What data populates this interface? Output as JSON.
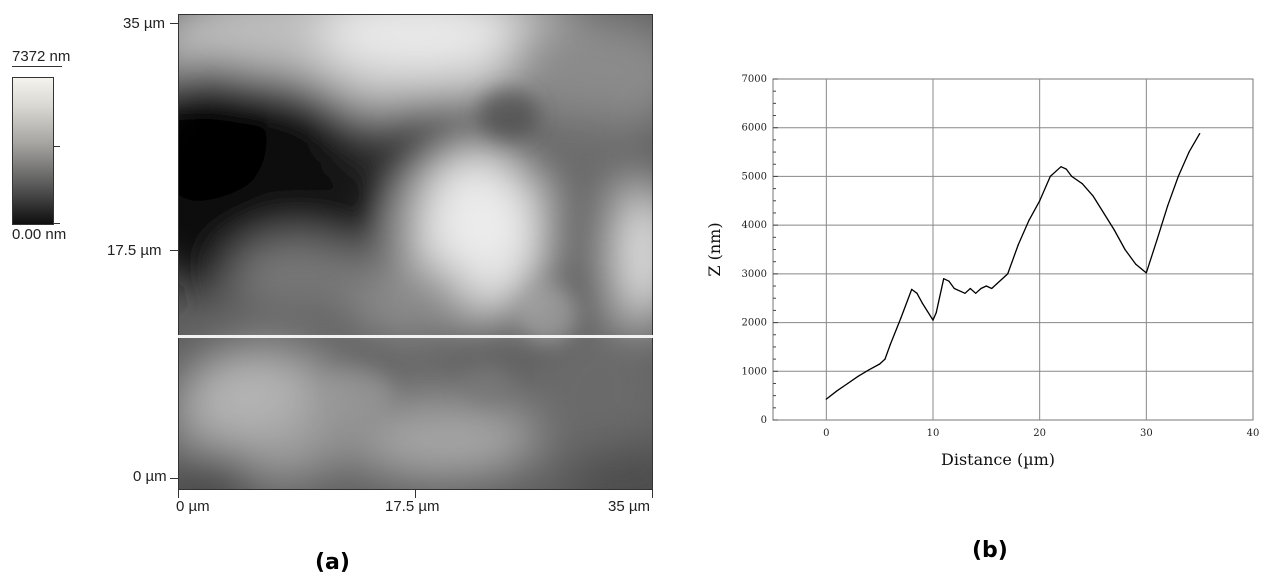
{
  "panel_a": {
    "label": "(a)",
    "colorbar": {
      "max_label": "7372 nm",
      "min_label": "0.00 nm"
    },
    "y_ticks": [
      "35 µm",
      "17.5 µm",
      "0 µm"
    ],
    "x_ticks": [
      "0 µm",
      "17.5 µm",
      "35 µm"
    ],
    "profile_line_fraction_from_top": 0.675
  },
  "panel_b": {
    "label": "(b)"
  },
  "chart_data": {
    "type": "line",
    "title": "",
    "xlabel": "Distance (µm)",
    "ylabel": "Z (nm)",
    "xlim": [
      -5,
      40
    ],
    "ylim": [
      0,
      7000
    ],
    "xticks": [
      0,
      10,
      20,
      30,
      40
    ],
    "yticks": [
      0,
      1000,
      2000,
      3000,
      4000,
      5000,
      6000,
      7000
    ],
    "x_tick_labels": [
      "0",
      "10",
      "20",
      "30",
      "40"
    ],
    "y_tick_labels": [
      "0",
      "1000",
      "2000",
      "3000",
      "4000",
      "5000",
      "6000",
      "7000"
    ],
    "grid": true,
    "series": [
      {
        "x": [
          0,
          1,
          2,
          3,
          4,
          5,
          5.5,
          6,
          7,
          8,
          8.5,
          9,
          10,
          10.3,
          11,
          11.5,
          12,
          13,
          13.5,
          14,
          14.5,
          15,
          15.5,
          16,
          17,
          18,
          19,
          20,
          21,
          22,
          22.5,
          23,
          24,
          25,
          26,
          27,
          28,
          29,
          30,
          31,
          32,
          33,
          34,
          35
        ],
        "y": [
          430,
          600,
          750,
          900,
          1030,
          1150,
          1250,
          1550,
          2100,
          2680,
          2600,
          2400,
          2050,
          2200,
          2900,
          2850,
          2700,
          2600,
          2700,
          2600,
          2700,
          2750,
          2700,
          2800,
          3000,
          3600,
          4100,
          4500,
          5000,
          5200,
          5150,
          5000,
          4850,
          4600,
          4250,
          3900,
          3500,
          3200,
          3020,
          3700,
          4400,
          5000,
          5500,
          5880
        ]
      }
    ]
  }
}
